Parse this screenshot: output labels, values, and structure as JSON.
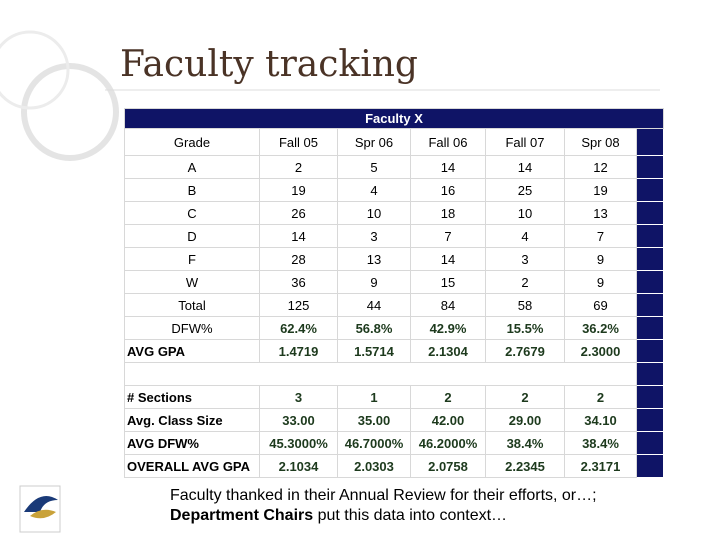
{
  "title": "Faculty tracking",
  "table": {
    "caption": "Faculty X",
    "header": [
      "Grade",
      "Fall 05",
      "Spr 06",
      "Fall 06",
      "Fall 07",
      "Spr 08"
    ],
    "rows": [
      [
        "A",
        "2",
        "5",
        "14",
        "14",
        "12"
      ],
      [
        "B",
        "19",
        "4",
        "16",
        "25",
        "19"
      ],
      [
        "C",
        "26",
        "10",
        "18",
        "10",
        "13"
      ],
      [
        "D",
        "14",
        "3",
        "7",
        "4",
        "7"
      ],
      [
        "F",
        "28",
        "13",
        "14",
        "3",
        "9"
      ],
      [
        "W",
        "36",
        "9",
        "15",
        "2",
        "9"
      ],
      [
        "Total",
        "125",
        "44",
        "84",
        "58",
        "69"
      ],
      [
        "DFW%",
        "62.4%",
        "56.8%",
        "42.9%",
        "15.5%",
        "36.2%"
      ],
      [
        "AVG GPA",
        "1.4719",
        "1.5714",
        "2.1304",
        "2.7679",
        "2.3000"
      ]
    ],
    "summary_rows": [
      [
        "# Sections",
        "3",
        "1",
        "2",
        "2",
        "2"
      ],
      [
        "Avg. Class Size",
        "33.00",
        "35.00",
        "42.00",
        "29.00",
        "34.10"
      ],
      [
        "AVG DFW%",
        "45.3000%",
        "46.7000%",
        "46.2000%",
        "38.4%",
        "38.4%"
      ],
      [
        "OVERALL AVG GPA",
        "2.1034",
        "2.0303",
        "2.0758",
        "2.2345",
        "2.3171"
      ]
    ]
  },
  "footer": {
    "line1": "Faculty thanked in their Annual Review for their efforts, or…;",
    "line2_bold": "Department Chairs",
    "line2_rest": " put this data into context…"
  }
}
